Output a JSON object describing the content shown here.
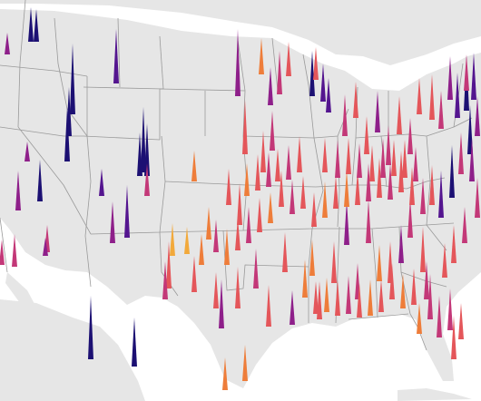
{
  "map": {
    "type": "spike-map",
    "region": "contiguous-united-states",
    "background": "#ffffff",
    "land_color": "#e6e6e6",
    "border_color": "#9a9a9a",
    "color_scale": [
      "#f2a93b",
      "#ee7d3a",
      "#e4565a",
      "#c33878",
      "#8e1f8a",
      "#54158f",
      "#1c1073"
    ],
    "spike_cells_vertical_levels": 6
  }
}
